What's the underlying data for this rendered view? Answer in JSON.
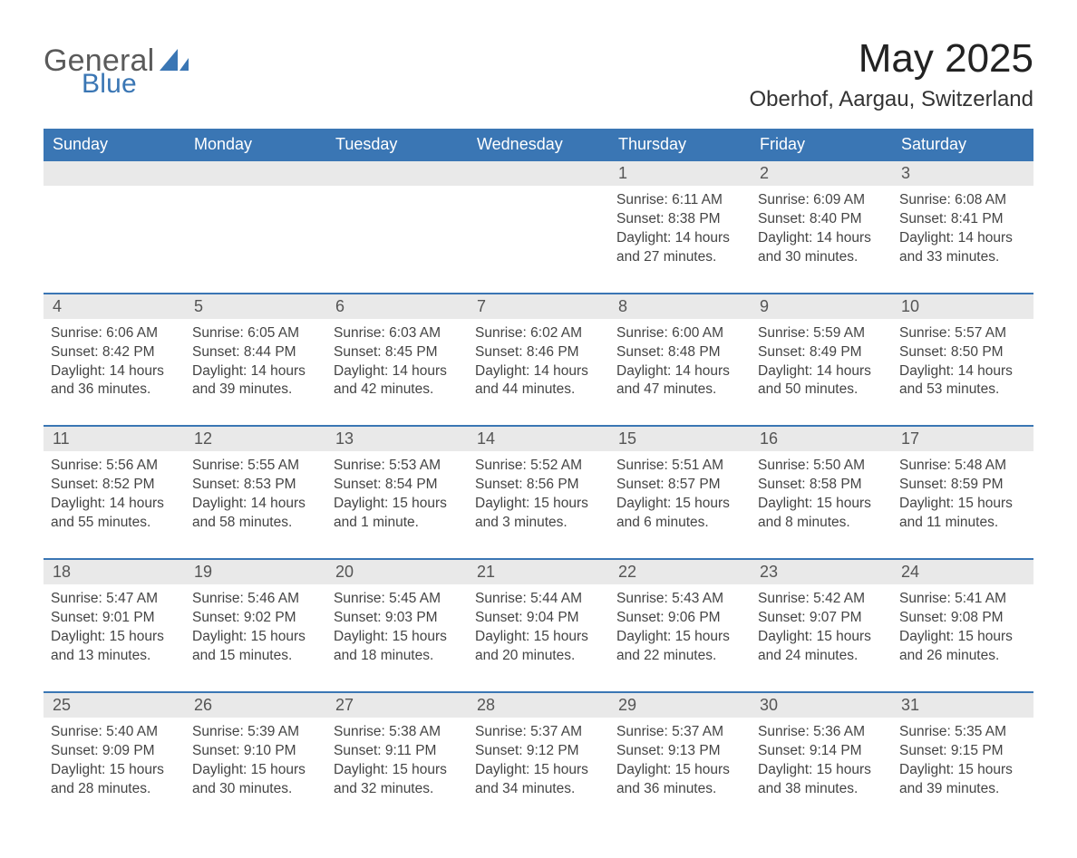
{
  "brand": {
    "word1": "General",
    "word2": "Blue",
    "word1_color": "#5a5a5a",
    "word2_color": "#3a76b4",
    "icon_color": "#3a76b4"
  },
  "header": {
    "month_title": "May 2025",
    "location": "Oberhof, Aargau, Switzerland"
  },
  "colors": {
    "header_bar": "#3a76b4",
    "header_text": "#ffffff",
    "daynum_bg": "#e9e9e9",
    "week_rule": "#3a76b4",
    "body_text": "#444444",
    "background": "#ffffff"
  },
  "typography": {
    "month_title_fontsize": 44,
    "location_fontsize": 24,
    "weekday_fontsize": 18,
    "daynum_fontsize": 18,
    "body_fontsize": 15.5,
    "font_family": "Helvetica Neue, Arial, sans-serif"
  },
  "calendar": {
    "type": "table",
    "columns": [
      "Sunday",
      "Monday",
      "Tuesday",
      "Wednesday",
      "Thursday",
      "Friday",
      "Saturday"
    ],
    "labels": {
      "sunrise": "Sunrise",
      "sunset": "Sunset",
      "daylight": "Daylight"
    },
    "weeks": [
      [
        null,
        null,
        null,
        null,
        {
          "day": "1",
          "sunrise": "6:11 AM",
          "sunset": "8:38 PM",
          "daylight": "14 hours and 27 minutes."
        },
        {
          "day": "2",
          "sunrise": "6:09 AM",
          "sunset": "8:40 PM",
          "daylight": "14 hours and 30 minutes."
        },
        {
          "day": "3",
          "sunrise": "6:08 AM",
          "sunset": "8:41 PM",
          "daylight": "14 hours and 33 minutes."
        }
      ],
      [
        {
          "day": "4",
          "sunrise": "6:06 AM",
          "sunset": "8:42 PM",
          "daylight": "14 hours and 36 minutes."
        },
        {
          "day": "5",
          "sunrise": "6:05 AM",
          "sunset": "8:44 PM",
          "daylight": "14 hours and 39 minutes."
        },
        {
          "day": "6",
          "sunrise": "6:03 AM",
          "sunset": "8:45 PM",
          "daylight": "14 hours and 42 minutes."
        },
        {
          "day": "7",
          "sunrise": "6:02 AM",
          "sunset": "8:46 PM",
          "daylight": "14 hours and 44 minutes."
        },
        {
          "day": "8",
          "sunrise": "6:00 AM",
          "sunset": "8:48 PM",
          "daylight": "14 hours and 47 minutes."
        },
        {
          "day": "9",
          "sunrise": "5:59 AM",
          "sunset": "8:49 PM",
          "daylight": "14 hours and 50 minutes."
        },
        {
          "day": "10",
          "sunrise": "5:57 AM",
          "sunset": "8:50 PM",
          "daylight": "14 hours and 53 minutes."
        }
      ],
      [
        {
          "day": "11",
          "sunrise": "5:56 AM",
          "sunset": "8:52 PM",
          "daylight": "14 hours and 55 minutes."
        },
        {
          "day": "12",
          "sunrise": "5:55 AM",
          "sunset": "8:53 PM",
          "daylight": "14 hours and 58 minutes."
        },
        {
          "day": "13",
          "sunrise": "5:53 AM",
          "sunset": "8:54 PM",
          "daylight": "15 hours and 1 minute."
        },
        {
          "day": "14",
          "sunrise": "5:52 AM",
          "sunset": "8:56 PM",
          "daylight": "15 hours and 3 minutes."
        },
        {
          "day": "15",
          "sunrise": "5:51 AM",
          "sunset": "8:57 PM",
          "daylight": "15 hours and 6 minutes."
        },
        {
          "day": "16",
          "sunrise": "5:50 AM",
          "sunset": "8:58 PM",
          "daylight": "15 hours and 8 minutes."
        },
        {
          "day": "17",
          "sunrise": "5:48 AM",
          "sunset": "8:59 PM",
          "daylight": "15 hours and 11 minutes."
        }
      ],
      [
        {
          "day": "18",
          "sunrise": "5:47 AM",
          "sunset": "9:01 PM",
          "daylight": "15 hours and 13 minutes."
        },
        {
          "day": "19",
          "sunrise": "5:46 AM",
          "sunset": "9:02 PM",
          "daylight": "15 hours and 15 minutes."
        },
        {
          "day": "20",
          "sunrise": "5:45 AM",
          "sunset": "9:03 PM",
          "daylight": "15 hours and 18 minutes."
        },
        {
          "day": "21",
          "sunrise": "5:44 AM",
          "sunset": "9:04 PM",
          "daylight": "15 hours and 20 minutes."
        },
        {
          "day": "22",
          "sunrise": "5:43 AM",
          "sunset": "9:06 PM",
          "daylight": "15 hours and 22 minutes."
        },
        {
          "day": "23",
          "sunrise": "5:42 AM",
          "sunset": "9:07 PM",
          "daylight": "15 hours and 24 minutes."
        },
        {
          "day": "24",
          "sunrise": "5:41 AM",
          "sunset": "9:08 PM",
          "daylight": "15 hours and 26 minutes."
        }
      ],
      [
        {
          "day": "25",
          "sunrise": "5:40 AM",
          "sunset": "9:09 PM",
          "daylight": "15 hours and 28 minutes."
        },
        {
          "day": "26",
          "sunrise": "5:39 AM",
          "sunset": "9:10 PM",
          "daylight": "15 hours and 30 minutes."
        },
        {
          "day": "27",
          "sunrise": "5:38 AM",
          "sunset": "9:11 PM",
          "daylight": "15 hours and 32 minutes."
        },
        {
          "day": "28",
          "sunrise": "5:37 AM",
          "sunset": "9:12 PM",
          "daylight": "15 hours and 34 minutes."
        },
        {
          "day": "29",
          "sunrise": "5:37 AM",
          "sunset": "9:13 PM",
          "daylight": "15 hours and 36 minutes."
        },
        {
          "day": "30",
          "sunrise": "5:36 AM",
          "sunset": "9:14 PM",
          "daylight": "15 hours and 38 minutes."
        },
        {
          "day": "31",
          "sunrise": "5:35 AM",
          "sunset": "9:15 PM",
          "daylight": "15 hours and 39 minutes."
        }
      ]
    ]
  }
}
